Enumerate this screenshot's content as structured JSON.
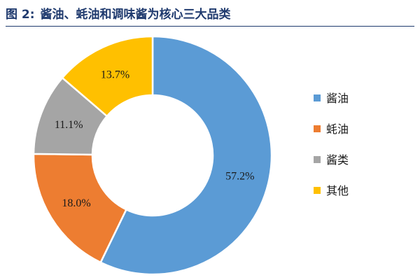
{
  "figure": {
    "label": "图 2:",
    "title": "酱油、蚝油和调味酱为核心三大品类"
  },
  "chart_data": {
    "type": "pie",
    "title": "",
    "legend_position": "right",
    "slices": [
      {
        "name": "酱油",
        "value": 57.2,
        "label": "57.2%",
        "color": "#5b9bd5"
      },
      {
        "name": "蚝油",
        "value": 18.0,
        "label": "18.0%",
        "color": "#ed7d31"
      },
      {
        "name": "酱类",
        "value": 11.1,
        "label": "11.1%",
        "color": "#a5a5a5"
      },
      {
        "name": "其他",
        "value": 13.7,
        "label": "13.7%",
        "color": "#ffc000"
      }
    ]
  }
}
